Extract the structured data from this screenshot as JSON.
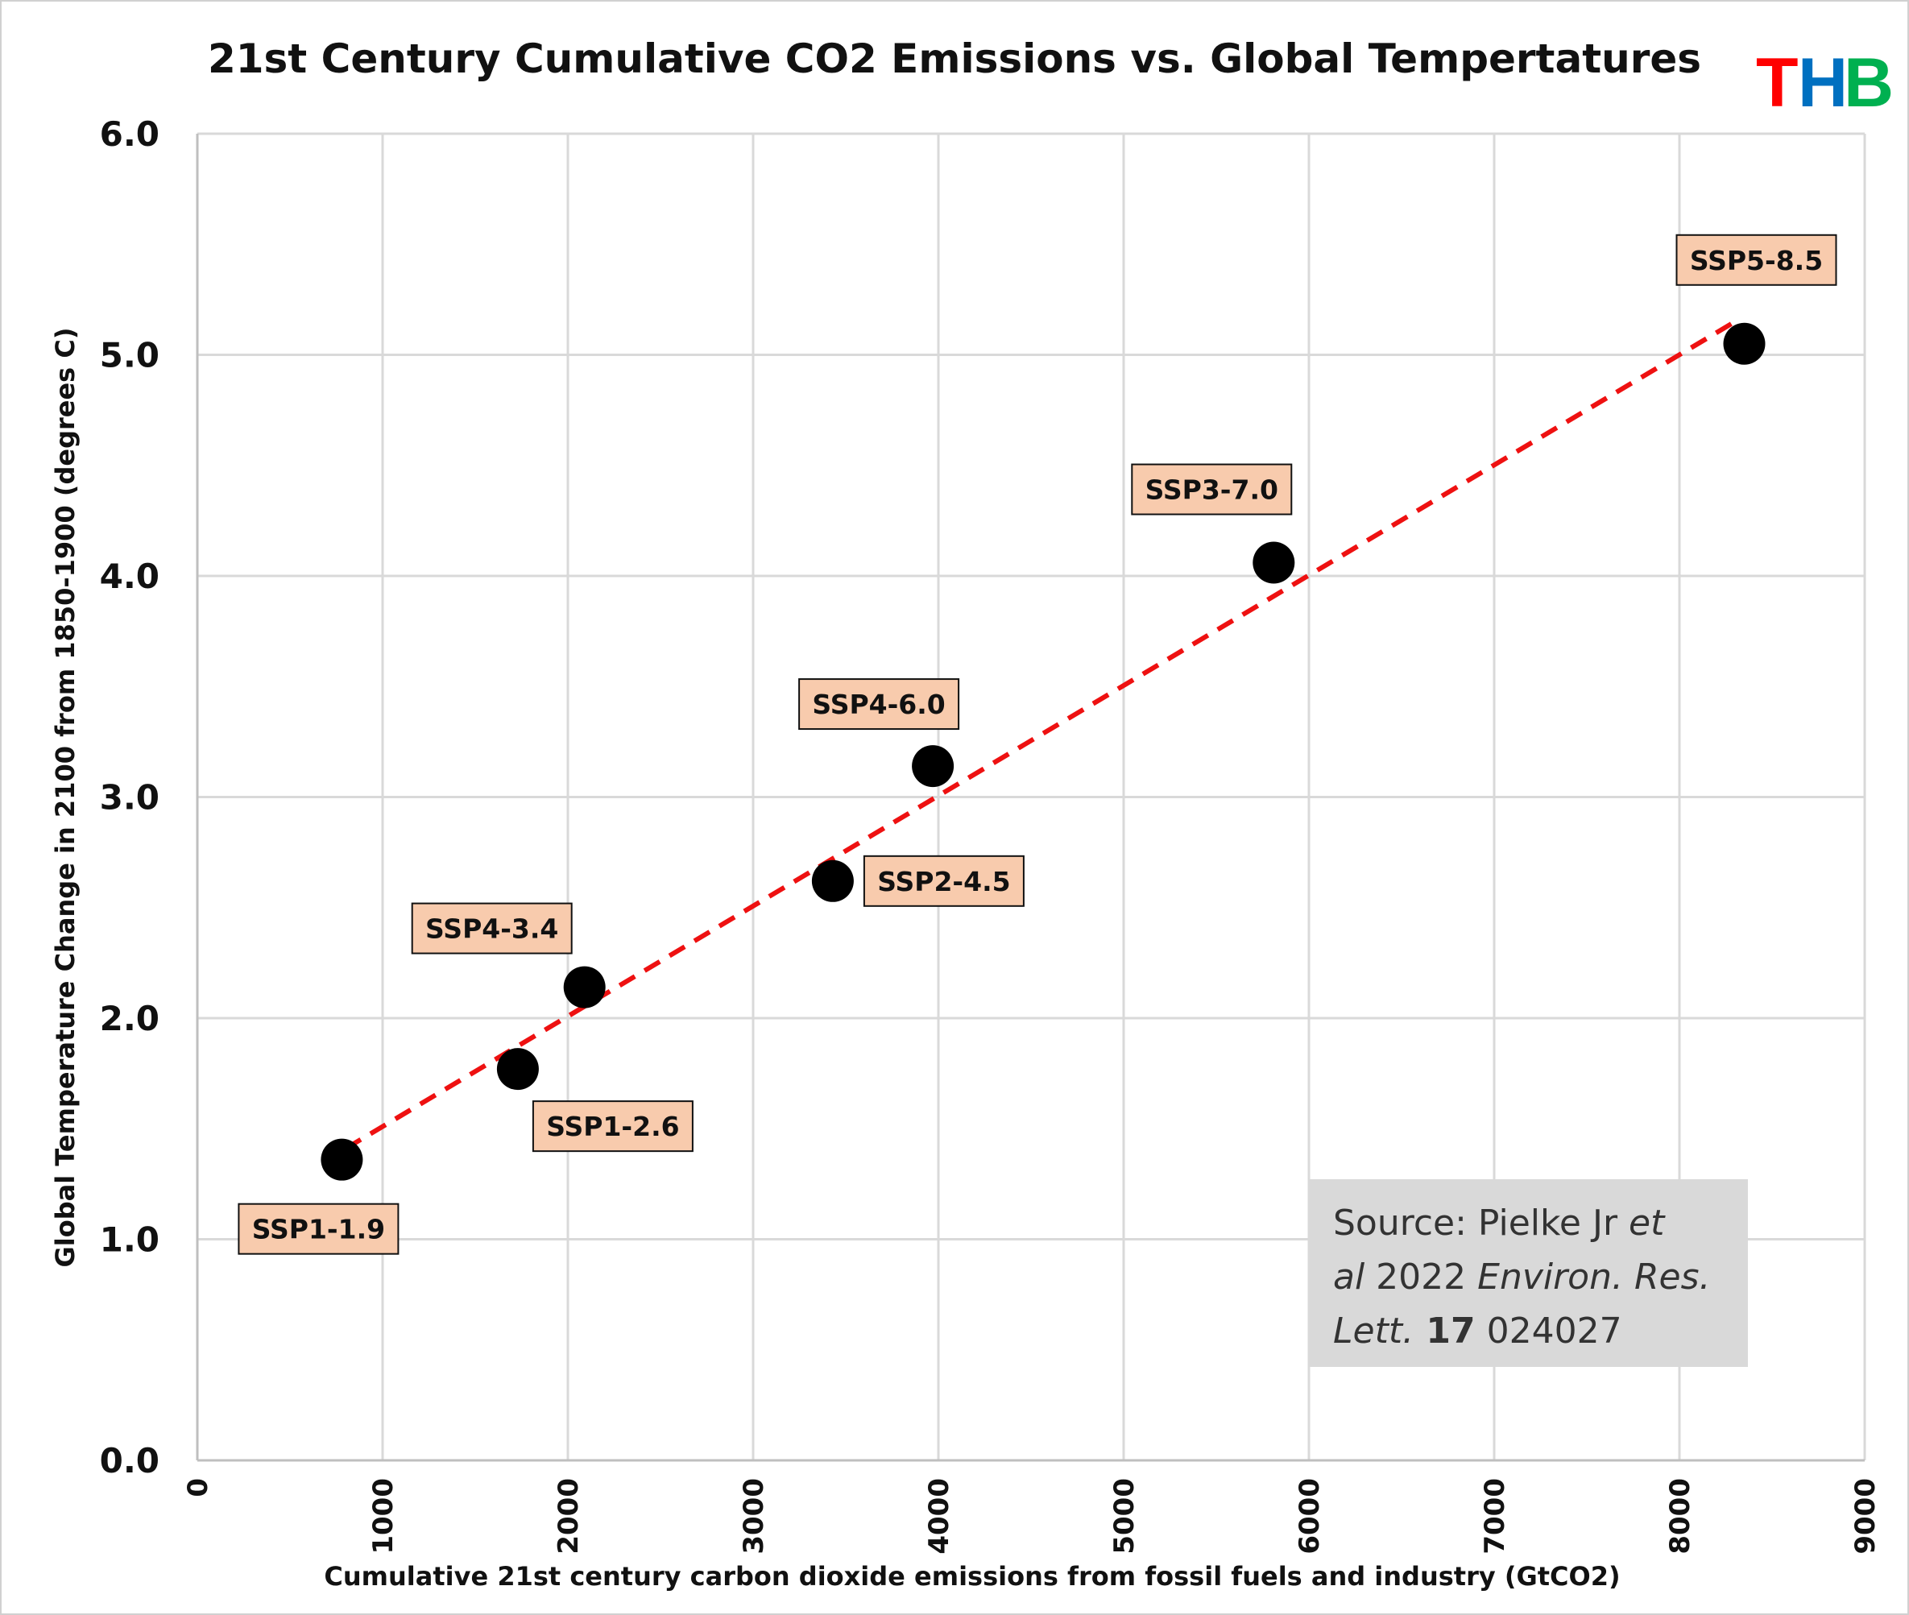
{
  "chart_data": {
    "type": "scatter",
    "title": "21st Century Cumulative CO2 Emissions vs. Global  Tempertatures",
    "xlabel": "Cumulative 21st century carbon dioxide emissions from fossil fuels and industry (GtCO2)",
    "ylabel": "Global Temperature Change in 2100 from 1850-1900  (degrees C)",
    "xlim": [
      0,
      9000
    ],
    "ylim": [
      0,
      6
    ],
    "xticks": [
      "0",
      "1000",
      "2000",
      "3000",
      "4000",
      "5000",
      "6000",
      "7000",
      "8000",
      "9000"
    ],
    "yticks": [
      "0.0",
      "1.0",
      "2.0",
      "3.0",
      "4.0",
      "5.0",
      "6.0"
    ],
    "grid": true,
    "points": [
      {
        "label": "SSP1-1.9",
        "x": 780,
        "y": 1.36
      },
      {
        "label": "SSP1-2.6",
        "x": 1730,
        "y": 1.77
      },
      {
        "label": "SSP4-3.4",
        "x": 2090,
        "y": 2.14
      },
      {
        "label": "SSP2-4.5",
        "x": 3430,
        "y": 2.62
      },
      {
        "label": "SSP4-6.0",
        "x": 3970,
        "y": 3.14
      },
      {
        "label": "SSP3-7.0",
        "x": 5810,
        "y": 4.06
      },
      {
        "label": "SSP5-8.5",
        "x": 8350,
        "y": 5.05
      }
    ],
    "trendline": {
      "style": "dashed",
      "color": "#ee1111",
      "x": [
        800,
        8300
      ],
      "y": [
        1.41,
        5.15
      ]
    },
    "point_color": "#000000",
    "label_fill": "#f8cbad"
  },
  "source": {
    "line1": [
      "Source: Pielke Jr ",
      "et"
    ],
    "line2": [
      "al",
      " 2022 ",
      "Environ. Res."
    ],
    "line3": [
      "Lett.",
      " 17",
      " 024027"
    ]
  },
  "logo": {
    "letters": [
      "T",
      "H",
      "B"
    ],
    "colors": [
      "#ff0000",
      "#0070c0",
      "#00b050"
    ]
  }
}
